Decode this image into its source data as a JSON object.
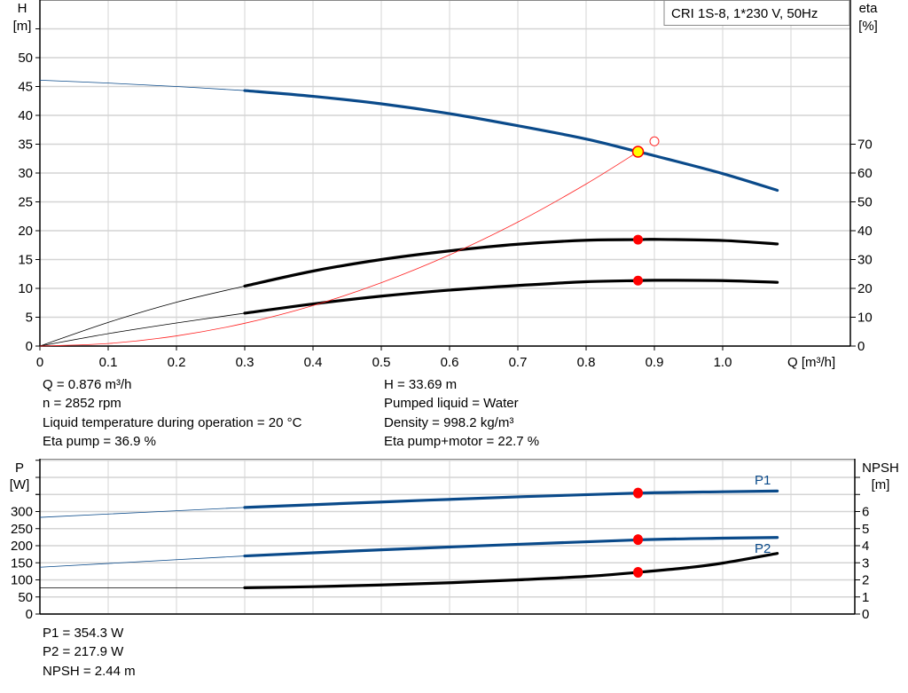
{
  "chart_data": [
    {
      "type": "line",
      "title": "CRI 1S-8, 1*230 V, 50Hz",
      "xlabel": "Q [m³/h]",
      "ylabel": "H",
      "ylabel_unit": "[m]",
      "y2label": "eta",
      "y2label_unit": "[%]",
      "xlim": [
        0,
        1.1
      ],
      "ylim": [
        0,
        55
      ],
      "y2lim": [
        0,
        110
      ],
      "grid": true,
      "xticks": [
        "0",
        "0.1",
        "0.2",
        "0.3",
        "0.4",
        "0.5",
        "0.6",
        "0.7",
        "0.8",
        "0.9",
        "1.0"
      ],
      "yticks": [
        "0",
        "5",
        "10",
        "15",
        "20",
        "25",
        "30",
        "35",
        "40",
        "45",
        "50"
      ],
      "y2ticks": [
        "0",
        "10",
        "20",
        "30",
        "40",
        "50",
        "60",
        "70"
      ],
      "series": [
        {
          "key": "H",
          "axis": "left",
          "color": "#0a4a8a",
          "thick_from": 0.3,
          "x": [
            0,
            0.1,
            0.2,
            0.3,
            0.4,
            0.5,
            0.6,
            0.7,
            0.8,
            0.876,
            0.9,
            1.0,
            1.08
          ],
          "y": [
            46.1,
            45.6,
            45.0,
            44.3,
            43.3,
            42.0,
            40.3,
            38.2,
            35.9,
            33.69,
            33.0,
            29.9,
            27.0
          ]
        },
        {
          "key": "eta_pump",
          "axis": "right",
          "color": "#000000",
          "thick_from": 0.3,
          "x": [
            0,
            0.1,
            0.2,
            0.3,
            0.4,
            0.5,
            0.6,
            0.7,
            0.8,
            0.876,
            0.9,
            1.0,
            1.08
          ],
          "y": [
            0,
            8.2,
            15.2,
            20.8,
            26.0,
            30.0,
            33.0,
            35.3,
            36.7,
            36.9,
            37.0,
            36.6,
            35.4
          ]
        },
        {
          "key": "eta_pump_motor",
          "axis": "right",
          "color": "#000000",
          "thick_from": 0.3,
          "x": [
            0,
            0.1,
            0.2,
            0.3,
            0.4,
            0.5,
            0.6,
            0.7,
            0.8,
            0.876,
            0.9,
            1.0,
            1.08
          ],
          "y": [
            0,
            4.3,
            8.0,
            11.4,
            14.6,
            17.3,
            19.4,
            21.0,
            22.3,
            22.7,
            22.8,
            22.7,
            22.1
          ]
        },
        {
          "key": "system",
          "axis": "left",
          "color": "#ff2020",
          "x": [
            0,
            0.1,
            0.2,
            0.3,
            0.4,
            0.5,
            0.6,
            0.7,
            0.8,
            0.876
          ],
          "y": [
            0,
            0.44,
            1.76,
            3.95,
            7.02,
            10.98,
            15.8,
            21.5,
            28.1,
            33.69
          ]
        }
      ],
      "duty_point": {
        "x": 0.876,
        "y": 33.69,
        "color": "#ffff00"
      },
      "requested_point": {
        "x": 0.9,
        "y": 35.5
      },
      "markers": [
        {
          "x": 0.876,
          "y": 36.9,
          "axis": "right"
        },
        {
          "x": 0.876,
          "y": 22.7,
          "axis": "right"
        }
      ]
    },
    {
      "type": "line",
      "ylabel": "P",
      "ylabel_unit": "[W]",
      "y2label": "NPSH",
      "y2label_unit": "[m]",
      "xlim": [
        0,
        1.1
      ],
      "ylim": [
        0,
        450
      ],
      "y2lim": [
        0,
        9
      ],
      "grid": true,
      "yticks": [
        "0",
        "50",
        "100",
        "150",
        "200",
        "250",
        "300"
      ],
      "y2ticks": [
        "0",
        "1",
        "2",
        "3",
        "4",
        "5",
        "6"
      ],
      "series": [
        {
          "name": "P1",
          "axis": "left",
          "color": "#0a4a8a",
          "thick_from": 0.3,
          "x": [
            0,
            0.3,
            0.5,
            0.7,
            0.876,
            1.0,
            1.08
          ],
          "y": [
            283,
            312,
            328,
            343,
            354,
            358,
            360
          ]
        },
        {
          "name": "P2",
          "axis": "left",
          "color": "#0a4a8a",
          "thick_from": 0.3,
          "x": [
            0,
            0.3,
            0.5,
            0.7,
            0.876,
            1.0,
            1.08
          ],
          "y": [
            137,
            170,
            188,
            204,
            217,
            222,
            224
          ]
        },
        {
          "key": "NPSH",
          "axis": "right",
          "color": "#000000",
          "thick_from": 0.3,
          "x": [
            0,
            0.3,
            0.4,
            0.5,
            0.6,
            0.7,
            0.8,
            0.876,
            0.95,
            1.0,
            1.08
          ],
          "y": [
            1.54,
            1.54,
            1.6,
            1.7,
            1.83,
            2.0,
            2.2,
            2.44,
            2.72,
            2.98,
            3.55
          ]
        }
      ],
      "markers": [
        {
          "x": 0.876,
          "y": 354.3,
          "axis": "left"
        },
        {
          "x": 0.876,
          "y": 217.9,
          "axis": "left"
        },
        {
          "x": 0.876,
          "y": 2.44,
          "axis": "right"
        }
      ]
    }
  ],
  "info_top": {
    "q": "Q = 0.876 m³/h",
    "n": "n = 2852 rpm",
    "temp": "Liquid temperature during operation = 20 °C",
    "eta_pump": "Eta pump = 36.9 %",
    "h": "H = 33.69 m",
    "liquid": "Pumped liquid = Water",
    "density": "Density = 998.2 kg/m³",
    "eta_total": "Eta pump+motor = 22.7 %"
  },
  "info_bottom": {
    "p1": "P1 = 354.3 W",
    "p2": "P2 = 217.9 W",
    "npsh": "NPSH = 2.44 m"
  }
}
